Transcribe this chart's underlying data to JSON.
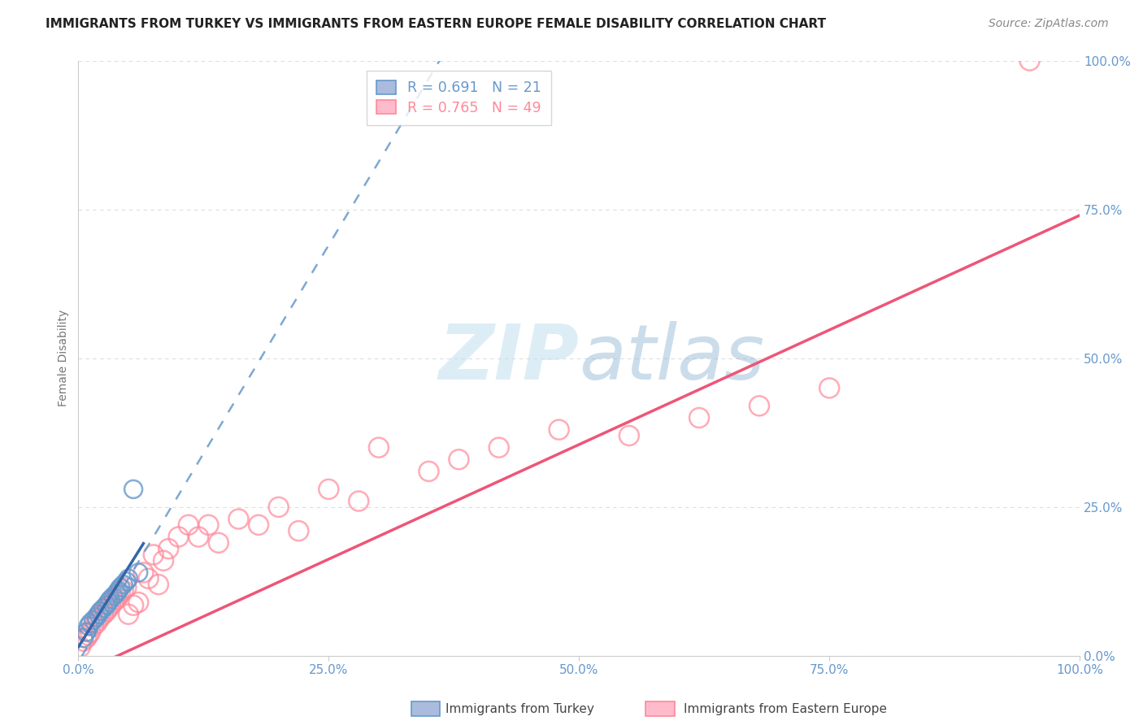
{
  "title": "IMMIGRANTS FROM TURKEY VS IMMIGRANTS FROM EASTERN EUROPE FEMALE DISABILITY CORRELATION CHART",
  "source": "Source: ZipAtlas.com",
  "ylabel": "Female Disability",
  "legend_blue": {
    "R": "0.691",
    "N": "21",
    "label": "Immigrants from Turkey"
  },
  "legend_pink": {
    "R": "0.765",
    "N": "49",
    "label": "Immigrants from Eastern Europe"
  },
  "blue_color": "#6699CC",
  "pink_color": "#FF8899",
  "blue_solid_color": "#3366AA",
  "pink_solid_color": "#EE5577",
  "watermark_color": "#AACCEE",
  "background_color": "#FFFFFF",
  "grid_color": "#DDDDDD",
  "blue_scatter_x": [
    0.005,
    0.008,
    0.01,
    0.012,
    0.015,
    0.018,
    0.02,
    0.022,
    0.025,
    0.028,
    0.03,
    0.032,
    0.035,
    0.038,
    0.04,
    0.042,
    0.045,
    0.048,
    0.05,
    0.055,
    0.06
  ],
  "blue_scatter_y": [
    0.03,
    0.04,
    0.05,
    0.055,
    0.06,
    0.065,
    0.07,
    0.075,
    0.08,
    0.085,
    0.09,
    0.095,
    0.1,
    0.105,
    0.11,
    0.115,
    0.12,
    0.125,
    0.13,
    0.28,
    0.14
  ],
  "pink_scatter_x": [
    0.002,
    0.005,
    0.008,
    0.01,
    0.012,
    0.015,
    0.018,
    0.02,
    0.022,
    0.025,
    0.028,
    0.03,
    0.032,
    0.035,
    0.038,
    0.04,
    0.042,
    0.045,
    0.048,
    0.05,
    0.055,
    0.06,
    0.065,
    0.07,
    0.075,
    0.08,
    0.085,
    0.09,
    0.1,
    0.11,
    0.12,
    0.13,
    0.14,
    0.16,
    0.18,
    0.2,
    0.22,
    0.25,
    0.28,
    0.3,
    0.35,
    0.38,
    0.42,
    0.48,
    0.55,
    0.62,
    0.68,
    0.75,
    0.95
  ],
  "pink_scatter_y": [
    0.015,
    0.025,
    0.03,
    0.035,
    0.04,
    0.05,
    0.055,
    0.06,
    0.065,
    0.07,
    0.075,
    0.08,
    0.085,
    0.09,
    0.095,
    0.1,
    0.105,
    0.11,
    0.115,
    0.07,
    0.085,
    0.09,
    0.14,
    0.13,
    0.17,
    0.12,
    0.16,
    0.18,
    0.2,
    0.22,
    0.2,
    0.22,
    0.19,
    0.23,
    0.22,
    0.25,
    0.21,
    0.28,
    0.26,
    0.35,
    0.31,
    0.33,
    0.35,
    0.38,
    0.37,
    0.4,
    0.42,
    0.45,
    1.0
  ],
  "blue_trend_slope": 2.8,
  "blue_trend_intercept": -0.01,
  "pink_trend_slope": 0.77,
  "pink_trend_intercept": -0.03,
  "xlim": [
    0,
    1.0
  ],
  "ylim": [
    0,
    1.0
  ],
  "xticks": [
    0.0,
    0.25,
    0.5,
    0.75,
    1.0
  ],
  "yticks": [
    0.0,
    0.25,
    0.5,
    0.75,
    1.0
  ],
  "xtick_labels": [
    "0.0%",
    "25.0%",
    "50.0%",
    "75.0%",
    "100.0%"
  ],
  "ytick_labels": [
    "0.0%",
    "25.0%",
    "50.0%",
    "75.0%",
    "100.0%"
  ]
}
